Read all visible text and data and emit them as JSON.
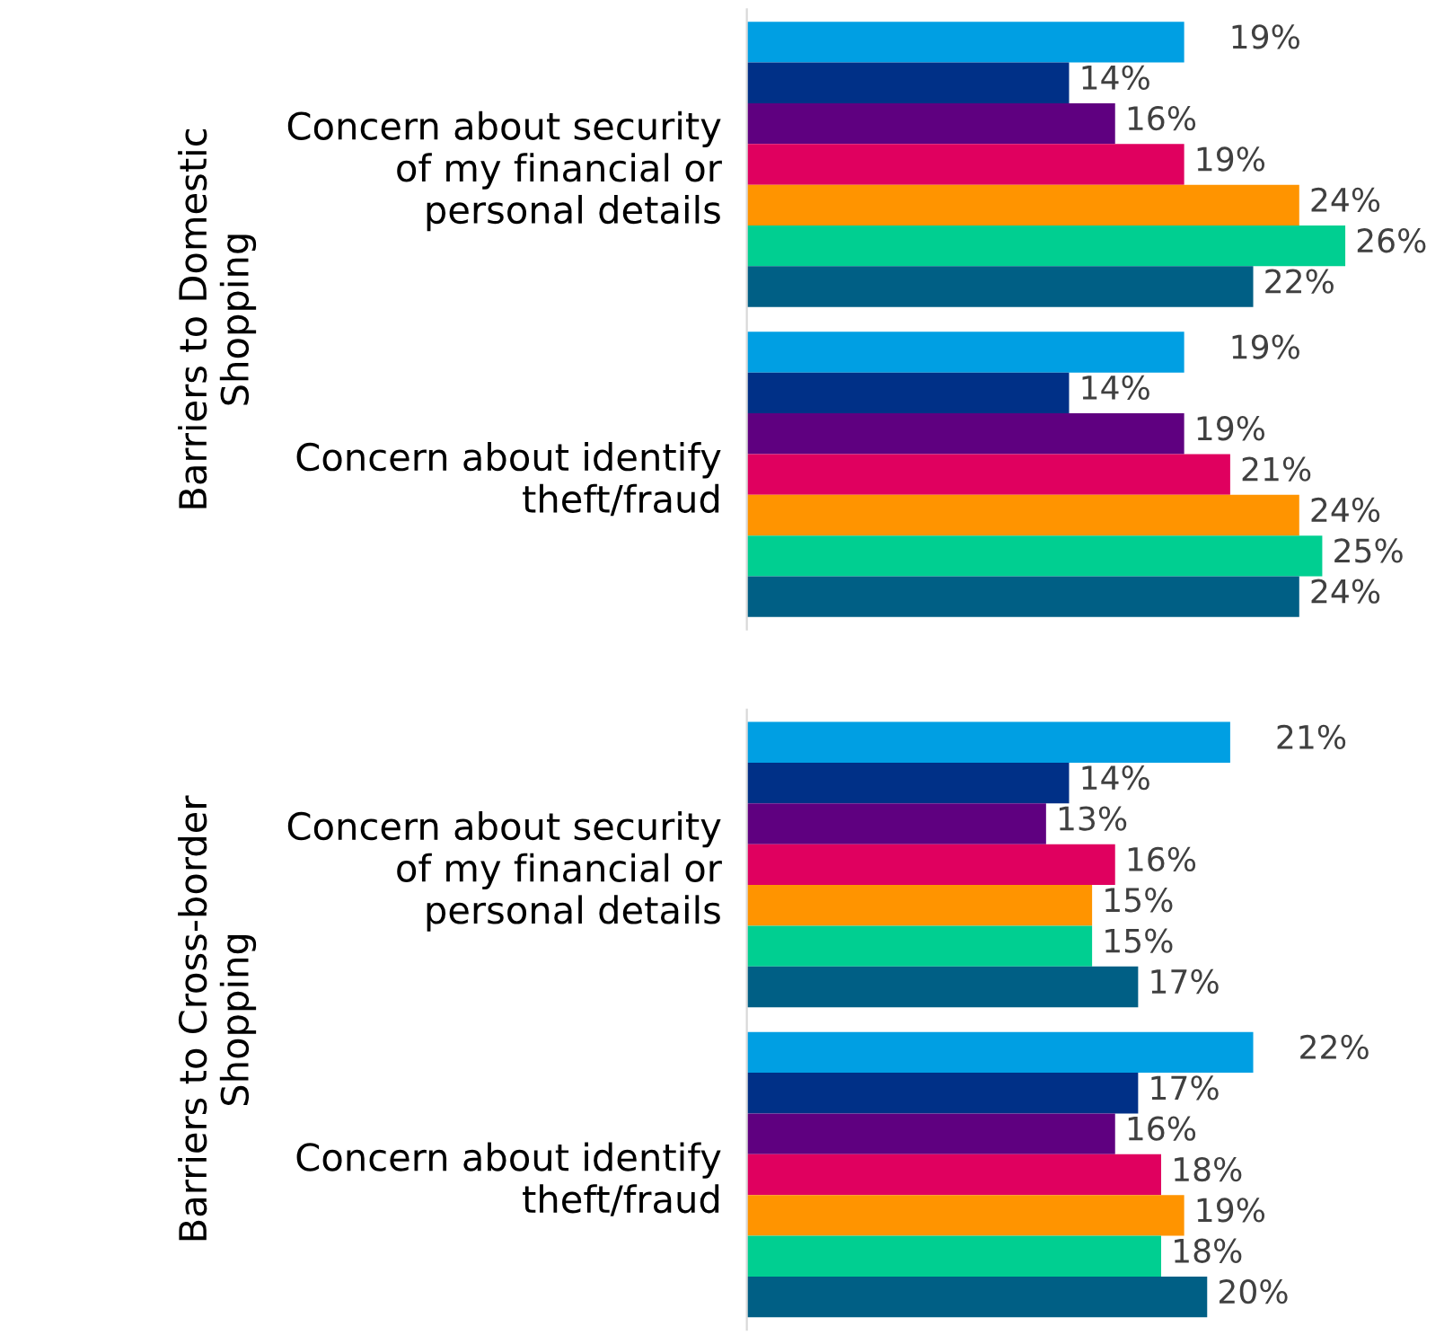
{
  "chart_data": [
    {
      "type": "bar",
      "orientation": "horizontal",
      "ylabel": "Barriers to Domestic\nShopping",
      "categories": [
        "Concern about security\nof my financial or\npersonal details",
        "Concern about identify\ntheft/fraud"
      ],
      "tick_labels": "y",
      "series": [
        {
          "color": "#009fe3",
          "values": [
            19,
            19
          ],
          "value_labels": [
            "19%",
            "19%"
          ]
        },
        {
          "color": "#003087",
          "values": [
            14,
            14
          ],
          "value_labels": [
            "14%",
            "14%"
          ]
        },
        {
          "color": "#5f0080",
          "values": [
            16,
            19
          ],
          "value_labels": [
            "16%",
            "19%"
          ]
        },
        {
          "color": "#e0005f",
          "values": [
            19,
            21
          ],
          "value_labels": [
            "19%",
            "21%"
          ]
        },
        {
          "color": "#ff9400",
          "values": [
            24,
            24
          ],
          "value_labels": [
            "24%",
            "24%"
          ]
        },
        {
          "color": "#00cf91",
          "values": [
            26,
            25
          ],
          "value_labels": [
            "26%",
            "25%"
          ]
        },
        {
          "color": "#005f85",
          "values": [
            22,
            24
          ],
          "value_labels": [
            "22%",
            "24%"
          ]
        }
      ]
    },
    {
      "type": "bar",
      "orientation": "horizontal",
      "ylabel": "Barriers to Cross-border\nShopping",
      "categories": [
        "Concern about security\nof my financial or\npersonal details",
        "Concern about identify\ntheft/fraud"
      ],
      "tick_labels": "y",
      "series": [
        {
          "color": "#009fe3",
          "values": [
            21,
            22
          ],
          "value_labels": [
            "21%",
            "22%"
          ]
        },
        {
          "color": "#003087",
          "values": [
            14,
            17
          ],
          "value_labels": [
            "14%",
            "17%"
          ]
        },
        {
          "color": "#5f0080",
          "values": [
            13,
            16
          ],
          "value_labels": [
            "13%",
            "16%"
          ]
        },
        {
          "color": "#e0005f",
          "values": [
            16,
            18
          ],
          "value_labels": [
            "16%",
            "18%"
          ]
        },
        {
          "color": "#ff9400",
          "values": [
            15,
            19
          ],
          "value_labels": [
            "15%",
            "19%"
          ]
        },
        {
          "color": "#00cf91",
          "values": [
            15,
            18
          ],
          "value_labels": [
            "15%",
            "18%"
          ]
        },
        {
          "color": "#005f85",
          "values": [
            17,
            20
          ],
          "value_labels": [
            "17%",
            "20%"
          ]
        }
      ]
    }
  ]
}
